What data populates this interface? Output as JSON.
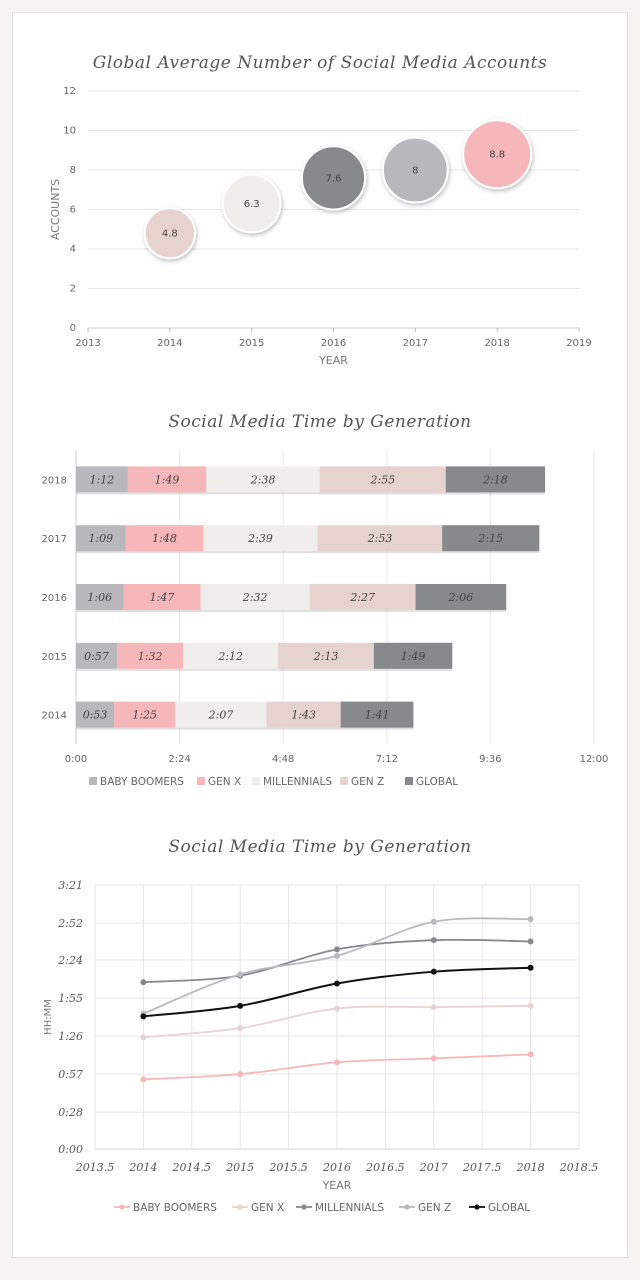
{
  "chart_data": [
    {
      "type": "scatter",
      "title": "Global Average Number of Social Media Accounts",
      "xlabel": "YEAR",
      "ylabel": "ACCOUNTS",
      "xlim": [
        2013,
        2019
      ],
      "ylim": [
        0,
        12
      ],
      "x_ticks": [
        "2013",
        "2014",
        "2015",
        "2016",
        "2017",
        "2018",
        "2019"
      ],
      "y_ticks": [
        "0",
        "2",
        "4",
        "6",
        "8",
        "10",
        "12"
      ],
      "points": [
        {
          "x": 2014,
          "y": 4.8,
          "label": "4.8",
          "color": "#e6d3cf"
        },
        {
          "x": 2015,
          "y": 6.3,
          "label": "6.3",
          "color": "#efeeea"
        },
        {
          "x": 2016,
          "y": 7.6,
          "label": "7.6",
          "color": "#868a8d"
        },
        {
          "x": 2017,
          "y": 8,
          "label": "8",
          "color": "#b8b7bc"
        },
        {
          "x": 2018,
          "y": 8.8,
          "label": "8.8",
          "color": "#f6b7bb"
        }
      ],
      "grid": true
    },
    {
      "type": "bar",
      "orientation": "horizontal",
      "stacked": true,
      "title": "Social Media Time by Generation",
      "categories": [
        "2018",
        "2017",
        "2016",
        "2015",
        "2014"
      ],
      "x_ticks": [
        "0:00",
        "2:24",
        "4:48",
        "7:12",
        "9:36",
        "12:00"
      ],
      "xlim_minutes": [
        0,
        720
      ],
      "legend_position": "bottom",
      "series": [
        {
          "name": "BABY BOOMERS",
          "color": "#b9b8bd",
          "minutes": [
            72,
            69,
            66,
            57,
            53
          ],
          "labels": [
            "1:12",
            "1:09",
            "1:06",
            "0:57",
            "0:53"
          ]
        },
        {
          "name": "GEN X",
          "color": "#f6b7bb",
          "minutes": [
            109,
            108,
            107,
            92,
            85
          ],
          "labels": [
            "1:49",
            "1:48",
            "1:47",
            "1:32",
            "1:25"
          ]
        },
        {
          "name": "MILLENNIALS",
          "color": "#efeeea",
          "minutes": [
            158,
            159,
            152,
            132,
            127
          ],
          "labels": [
            "2:38",
            "2:39",
            "2:32",
            "2:12",
            "2:07"
          ]
        },
        {
          "name": "GEN Z",
          "color": "#e6d3cf",
          "minutes": [
            175,
            173,
            147,
            133,
            103
          ],
          "labels": [
            "2:55",
            "2:53",
            "2:27",
            "2:13",
            "1:43"
          ]
        },
        {
          "name": "GLOBAL",
          "color": "#868a8d",
          "minutes": [
            138,
            135,
            126,
            109,
            101
          ],
          "labels": [
            "2:18",
            "2:15",
            "2:06",
            "1:49",
            "1:41"
          ]
        }
      ],
      "grid": true
    },
    {
      "type": "line",
      "title": "Social Media Time by Generation",
      "xlabel": "YEAR",
      "ylabel": "HH:MM",
      "x": [
        2014,
        2015,
        2016,
        2017,
        2018
      ],
      "xlim": [
        2013.5,
        2018.5
      ],
      "x_ticks": [
        "2013.5",
        "2014",
        "2014.5",
        "2015",
        "2015.5",
        "2016",
        "2016.5",
        "2017",
        "2017.5",
        "2018",
        "2018.5"
      ],
      "ylim_minutes": [
        0,
        201
      ],
      "y_ticks": [
        "0:00",
        "0:28",
        "0:57",
        "1:26",
        "1:55",
        "2:24",
        "2:52",
        "3:21"
      ],
      "legend_position": "bottom",
      "series": [
        {
          "name": "BABY BOOMERS",
          "color": "#f6b7bb",
          "minutes": [
            53,
            57,
            66,
            69,
            72
          ]
        },
        {
          "name": "GEN X",
          "color": "#e6d3cf",
          "minutes": [
            85,
            92,
            107,
            108,
            109
          ]
        },
        {
          "name": "MILLENNIALS",
          "color": "#868a8d",
          "minutes": [
            127,
            132,
            152,
            159,
            158
          ]
        },
        {
          "name": "GEN Z",
          "color": "#b9b8bd",
          "minutes": [
            103,
            133,
            147,
            173,
            175
          ]
        },
        {
          "name": "GLOBAL",
          "color": "#111111",
          "minutes": [
            101,
            109,
            126,
            135,
            138
          ]
        }
      ],
      "grid": true
    }
  ]
}
